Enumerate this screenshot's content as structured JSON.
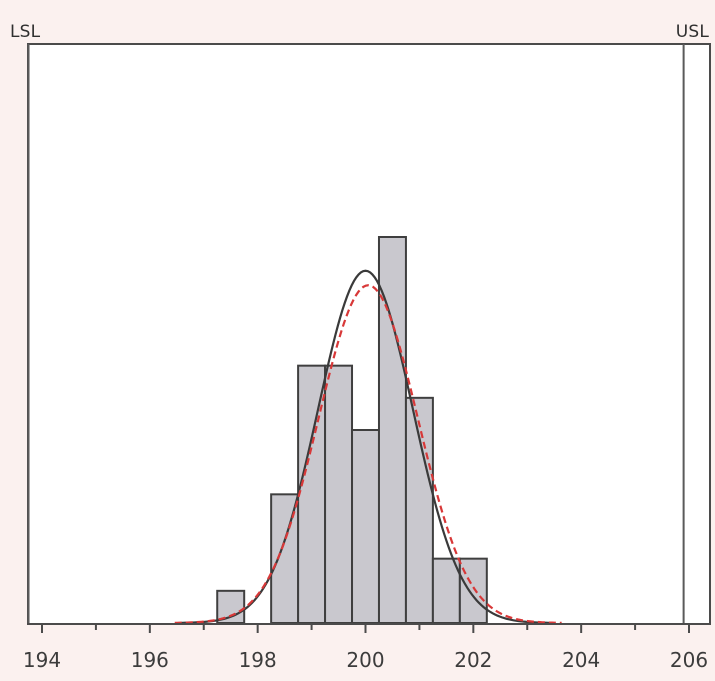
{
  "chart_data": {
    "type": "bar",
    "title": "",
    "xlabel": "",
    "ylabel": "",
    "xlim": [
      194,
      206
    ],
    "ylim": [
      0,
      18
    ],
    "x_ticks": [
      194,
      196,
      198,
      200,
      202,
      204,
      206
    ],
    "spec_limits": {
      "lower_label": "LSL",
      "upper_label": "USL",
      "lower": 193.75,
      "upper": 205.9
    },
    "bin_width": 0.5,
    "bins": [
      {
        "center": 197.5,
        "count": 1
      },
      {
        "center": 198.5,
        "count": 4
      },
      {
        "center": 199.0,
        "count": 8
      },
      {
        "center": 199.5,
        "count": 8
      },
      {
        "center": 200.0,
        "count": 6
      },
      {
        "center": 200.5,
        "count": 12
      },
      {
        "center": 201.0,
        "count": 7
      },
      {
        "center": 201.5,
        "count": 2
      },
      {
        "center": 202.0,
        "count": 2
      }
    ],
    "fit_curves": [
      {
        "name": "",
        "mean": 200.0,
        "sd": 0.88,
        "peak": 10.95,
        "color": "#3a3a3a",
        "style": "solid"
      },
      {
        "name": "",
        "mean": 200.05,
        "sd": 0.92,
        "peak": 10.5,
        "color": "#d83838",
        "style": "dashed"
      }
    ],
    "grid": false,
    "legend": "none"
  }
}
